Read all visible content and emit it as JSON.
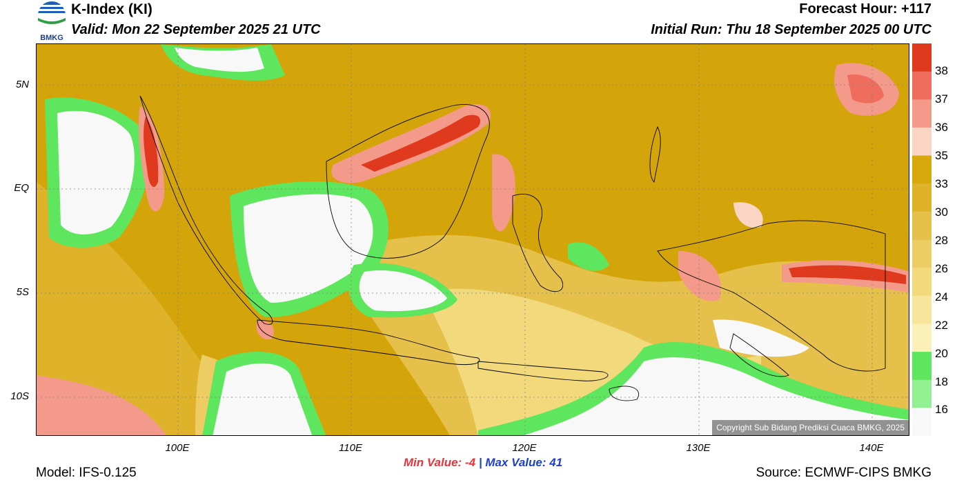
{
  "header": {
    "title": "K-Index (KI)",
    "valid": "Valid: Mon 22 September 2025 21 UTC",
    "forecast_hour": "Forecast Hour: +117",
    "initial_run": "Initial Run: Thu 18 September 2025 00 UTC",
    "logo_text": "BMKG"
  },
  "map": {
    "lat_labels": [
      "5N",
      "EQ",
      "5S",
      "10S"
    ],
    "lon_labels": [
      "100E",
      "110E",
      "120E",
      "130E",
      "140E"
    ],
    "copyright": "Copyright Sub Bidang Prediksi Cuaca BMKG, 2025"
  },
  "legend": {
    "labels": [
      "38",
      "37",
      "36",
      "35",
      "33",
      "30",
      "28",
      "26",
      "24",
      "22",
      "20",
      "18",
      "16"
    ],
    "colors": [
      "#e03a1e",
      "#ee6d5c",
      "#f49a8a",
      "#fad5c3",
      "#d7a80b",
      "#deb32a",
      "#e5c04a",
      "#eccc63",
      "#f1d97c",
      "#f6e59a",
      "#fbf0b8",
      "#5ee65e",
      "#92ef92",
      "#f8f8f8"
    ]
  },
  "footer": {
    "min_label": "Min Value:",
    "min_value": "-4",
    "separator": "|",
    "max_label": "Max Value:",
    "max_value": "41",
    "model": "Model: IFS-0.125",
    "source": "Source: ECMWF-CIPS BMKG"
  }
}
